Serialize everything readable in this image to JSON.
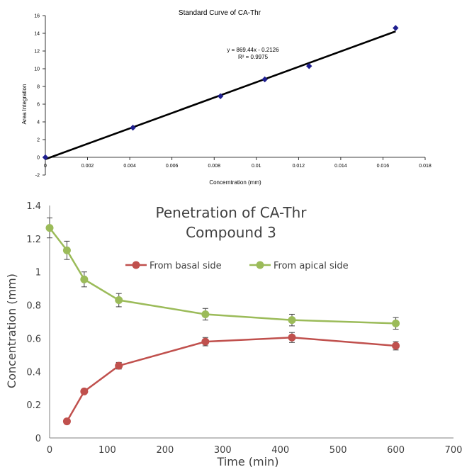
{
  "chart_data": [
    {
      "type": "scatter",
      "title": "Standard Curve of CA-Thr",
      "xlabel": "Concerntration (mm)",
      "ylabel": "Area Integration",
      "xlim": [
        0,
        0.018
      ],
      "ylim": [
        -2,
        16
      ],
      "xticks": [
        "0",
        "0.002",
        "0.004",
        "0.006",
        "0.008",
        "0.01",
        "0.012",
        "0.014",
        "0.016",
        "0.018"
      ],
      "yticks": [
        "-2",
        "0",
        "2",
        "4",
        "6",
        "8",
        "10",
        "12",
        "14",
        "16"
      ],
      "grid": false,
      "series": [
        {
          "x": [
            0,
            0.00415,
            0.0083,
            0.0104,
            0.0125,
            0.0166
          ],
          "y": [
            0,
            3.35,
            6.9,
            8.8,
            10.3,
            14.6
          ],
          "marker": "diamond",
          "color": "#1f1f8f"
        }
      ],
      "trendline": {
        "slope": 869.44,
        "intercept": -0.2126,
        "x_range": [
          0,
          0.0166
        ],
        "equation": "y = 869.44x - 0.2126",
        "r2": "R² = 0.9975",
        "color": "#000000"
      }
    },
    {
      "type": "line",
      "title": "Penetration of CA-Thr",
      "subtitle": "Compound 3",
      "xlabel": "Time (min)",
      "ylabel": "Concentration (mm)",
      "xlim": [
        0,
        700
      ],
      "ylim": [
        0,
        1.4
      ],
      "xticks": [
        "0",
        "100",
        "200",
        "300",
        "400",
        "500",
        "600",
        "700"
      ],
      "yticks": [
        "0",
        "0.2",
        "0.4",
        "0.6",
        "0.8",
        "1",
        "1.2",
        "1.4"
      ],
      "grid": false,
      "legend": "top-center",
      "series": [
        {
          "name": "From basal side",
          "color": "#c0504d",
          "x": [
            30,
            60,
            120,
            270,
            420,
            600
          ],
          "y": [
            0.1,
            0.28,
            0.435,
            0.58,
            0.605,
            0.555
          ],
          "error": [
            0,
            0,
            0.02,
            0.025,
            0.03,
            0.025
          ]
        },
        {
          "name": "From apical side",
          "color": "#9bbb59",
          "x": [
            0,
            30,
            60,
            120,
            270,
            420,
            600
          ],
          "y": [
            1.265,
            1.13,
            0.955,
            0.83,
            0.745,
            0.71,
            0.69
          ],
          "error": [
            0.06,
            0.055,
            0.045,
            0.04,
            0.035,
            0.035,
            0.035
          ]
        }
      ]
    }
  ]
}
